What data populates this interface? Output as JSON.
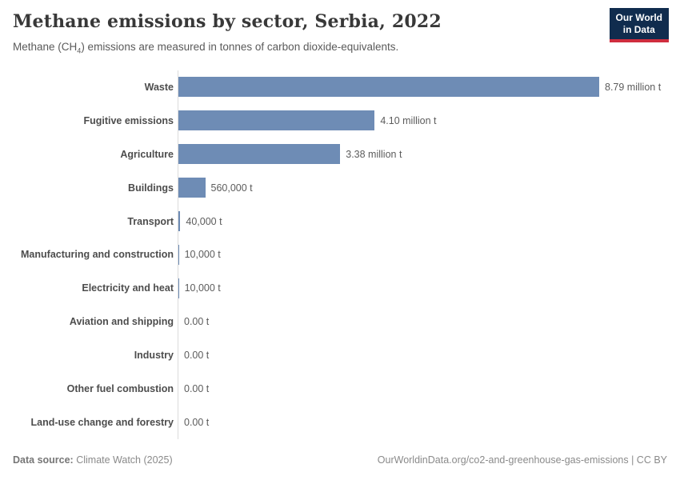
{
  "header": {
    "title": "Methane emissions by sector, Serbia, 2022",
    "subtitle_prefix": "Methane (CH",
    "subtitle_sub": "4",
    "subtitle_suffix": ") emissions are measured in tonnes of carbon dioxide-equivalents."
  },
  "logo": {
    "line1": "Our World",
    "line2": "in Data",
    "bg_color": "#102c4e",
    "accent_color": "#cf2d3e"
  },
  "chart_data": {
    "type": "bar",
    "orientation": "horizontal",
    "title": "Methane emissions by sector, Serbia, 2022",
    "subtitle": "Methane (CH4) emissions are measured in tonnes of carbon dioxide-equivalents.",
    "unit": "t (carbon dioxide-equivalents)",
    "grid": false,
    "legend": false,
    "categories": [
      "Waste",
      "Fugitive emissions",
      "Agriculture",
      "Buildings",
      "Transport",
      "Manufacturing and construction",
      "Electricity and heat",
      "Aviation and shipping",
      "Industry",
      "Other fuel combustion",
      "Land-use change and forestry"
    ],
    "values_tonnes": [
      8790000,
      4100000,
      3380000,
      560000,
      40000,
      10000,
      10000,
      0,
      0,
      0,
      0
    ],
    "value_labels": [
      "8.79 million t",
      "4.10 million t",
      "3.38 million t",
      "560,000 t",
      "40,000 t",
      "10,000 t",
      "10,000 t",
      "0.00 t",
      "0.00 t",
      "0.00 t",
      "0.00 t"
    ],
    "xlim_tonnes": [
      0,
      8790000
    ],
    "bar_color": "#6e8cb5"
  },
  "footer": {
    "data_source_label": "Data source:",
    "data_source_value": " Climate Watch (2025)",
    "attribution": "OurWorldinData.org/co2-and-greenhouse-gas-emissions | CC BY"
  }
}
